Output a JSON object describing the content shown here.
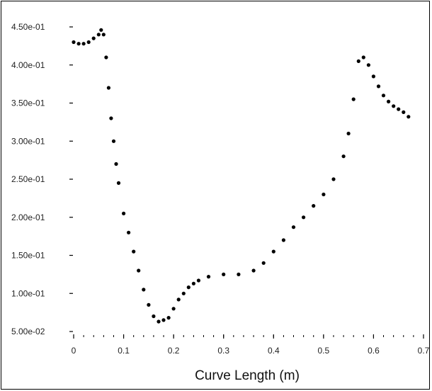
{
  "chart_data": {
    "type": "scatter",
    "title": "",
    "xlabel": "Curve Length (m)",
    "ylabel": "",
    "xlim": [
      0,
      0.7
    ],
    "ylim": [
      0.05,
      0.45
    ],
    "grid": false,
    "legend": "none",
    "x_ticks": [
      "0",
      "0.1",
      "0.2",
      "0.3",
      "0.4",
      "0.5",
      "0.6",
      "0.7"
    ],
    "y_ticks": [
      "5.00e-02",
      "1.00e-01",
      "1.50e-01",
      "2.00e-01",
      "2.50e-01",
      "3.00e-01",
      "3.50e-01",
      "4.00e-01",
      "4.50e-01"
    ],
    "marker_color": "#000000",
    "series": [
      {
        "x": [
          0.0,
          0.01,
          0.02,
          0.03,
          0.04,
          0.05,
          0.055,
          0.06,
          0.065,
          0.07,
          0.075,
          0.08,
          0.085,
          0.09,
          0.1,
          0.11,
          0.12,
          0.13,
          0.14,
          0.15,
          0.16,
          0.17,
          0.18,
          0.19,
          0.2,
          0.21,
          0.22,
          0.23,
          0.24,
          0.25,
          0.27,
          0.3,
          0.33,
          0.36,
          0.38,
          0.4,
          0.42,
          0.44,
          0.46,
          0.48,
          0.5,
          0.52,
          0.54,
          0.55,
          0.56,
          0.57,
          0.58,
          0.59,
          0.6,
          0.61,
          0.62,
          0.63,
          0.64,
          0.65,
          0.66,
          0.67
        ],
        "y": [
          0.43,
          0.428,
          0.428,
          0.43,
          0.435,
          0.44,
          0.446,
          0.44,
          0.41,
          0.37,
          0.33,
          0.3,
          0.27,
          0.245,
          0.205,
          0.18,
          0.155,
          0.13,
          0.105,
          0.085,
          0.07,
          0.063,
          0.065,
          0.068,
          0.08,
          0.092,
          0.1,
          0.108,
          0.113,
          0.117,
          0.122,
          0.125,
          0.125,
          0.13,
          0.14,
          0.155,
          0.17,
          0.187,
          0.2,
          0.215,
          0.23,
          0.25,
          0.28,
          0.31,
          0.355,
          0.405,
          0.41,
          0.4,
          0.385,
          0.372,
          0.36,
          0.352,
          0.346,
          0.342,
          0.338,
          0.332
        ]
      }
    ]
  }
}
